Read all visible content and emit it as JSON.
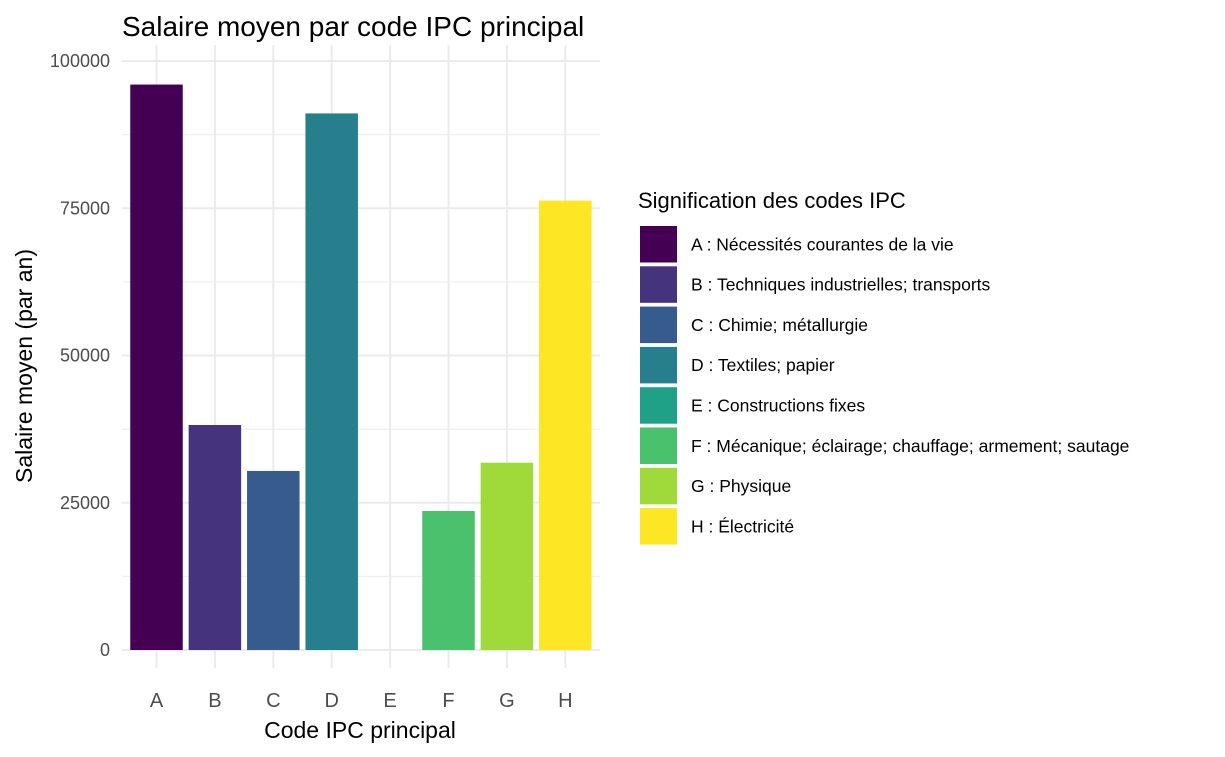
{
  "chart_data": {
    "type": "bar",
    "title": "Salaire moyen par code IPC principal",
    "xlabel": "Code IPC principal",
    "ylabel": "Salaire moyen (par an)",
    "categories": [
      "A",
      "B",
      "C",
      "D",
      "E",
      "F",
      "G",
      "H"
    ],
    "values": [
      96000,
      38200,
      30400,
      91100,
      0,
      23600,
      31800,
      76300
    ],
    "ylim": [
      0,
      100000
    ],
    "yticks": [
      "0",
      "25000",
      "50000",
      "75000",
      "100000"
    ],
    "ytick_values": [
      0,
      25000,
      50000,
      75000,
      100000
    ],
    "grid": true,
    "legend": {
      "title": "Signification des codes IPC",
      "position": "right",
      "entries": [
        "A : Nécessités courantes de la vie",
        "B : Techniques industrielles; transports",
        "C : Chimie; métallurgie",
        "D : Textiles; papier",
        "E : Constructions fixes",
        "F : Mécanique; éclairage; chauffage; armement; sautage",
        "G : Physique",
        "H : Électricité"
      ]
    },
    "colors": [
      "#440154",
      "#46337E",
      "#365C8D",
      "#277F8E",
      "#1FA187",
      "#4AC16D",
      "#9FDA3A",
      "#FDE725"
    ]
  }
}
